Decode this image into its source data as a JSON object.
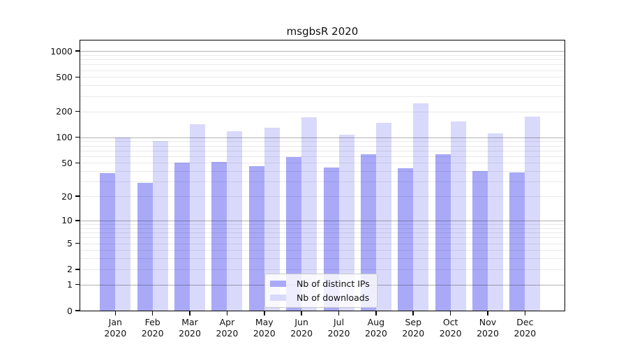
{
  "title": "msgbsR 2020",
  "colors": {
    "bar_ips": "#a9a9f8",
    "bar_downloads": "#d9d9fb",
    "grid_major": "rgba(0,0,0,0.30)",
    "grid_minor": "rgba(0,0,0,0.085)",
    "axis": "#000000",
    "background": "#ffffff"
  },
  "chart_data": {
    "type": "bar",
    "title": "msgbsR 2020",
    "y_scale": "log1p",
    "ylim": [
      0,
      1000
    ],
    "grid": "on",
    "legend_position": "inset-bottom-center",
    "categories": [
      "Jan",
      "Feb",
      "Mar",
      "Apr",
      "May",
      "Jun",
      "Jul",
      "Aug",
      "Sep",
      "Oct",
      "Nov",
      "Dec"
    ],
    "x_tick_year": "2020",
    "series": [
      {
        "key": "ips",
        "name": "Nb of distinct IPs",
        "color": "#a9a9f8",
        "values": [
          38,
          29,
          50,
          51,
          46,
          59,
          44,
          63,
          43,
          63,
          40,
          39
        ]
      },
      {
        "key": "downloads",
        "name": "Nb of downloads",
        "color": "#d9d9fb",
        "values": [
          100,
          91,
          143,
          118,
          128,
          171,
          107,
          148,
          247,
          152,
          112,
          175
        ]
      }
    ],
    "y_tick_values": [
      1000,
      500,
      200,
      100,
      50,
      20,
      10,
      5,
      2,
      1,
      0
    ],
    "y_tick_labels": [
      "1000",
      "500",
      "200",
      "100",
      "50",
      "20",
      "10",
      "5",
      "2",
      "1",
      "0"
    ],
    "gridline_values_major": [
      1,
      10,
      100,
      1000
    ],
    "gridline_values_minor": [
      2,
      3,
      4,
      5,
      6,
      7,
      8,
      9,
      20,
      30,
      40,
      50,
      60,
      70,
      80,
      90,
      200,
      300,
      400,
      500,
      600,
      700,
      800,
      900
    ]
  },
  "legend": {
    "items": [
      {
        "label": "Nb of distinct IPs",
        "color": "#a9a9f8"
      },
      {
        "label": "Nb of downloads",
        "color": "#d9d9fb"
      }
    ]
  }
}
